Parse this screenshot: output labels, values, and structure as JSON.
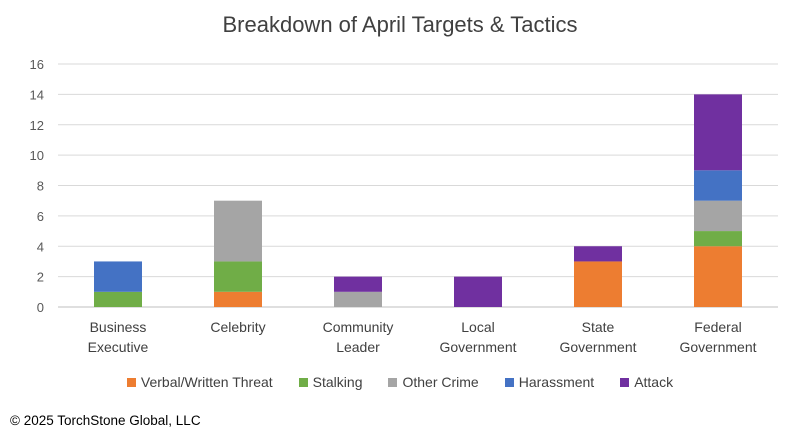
{
  "chart_data": {
    "type": "bar",
    "stacked": true,
    "title": "Breakdown of April Targets & Tactics",
    "categories": [
      [
        "Business",
        "Executive"
      ],
      [
        "Celebrity"
      ],
      [
        "Community",
        "Leader"
      ],
      [
        "Local",
        "Government"
      ],
      [
        "State",
        "Government"
      ],
      [
        "Federal",
        "Government"
      ]
    ],
    "series": [
      {
        "name": "Verbal/Written Threat",
        "color": "#ED7D31",
        "values": [
          0,
          1,
          0,
          0,
          3,
          4
        ]
      },
      {
        "name": "Stalking",
        "color": "#70AD47",
        "values": [
          1,
          2,
          0,
          0,
          0,
          1
        ]
      },
      {
        "name": "Other Crime",
        "color": "#A5A5A5",
        "values": [
          0,
          4,
          1,
          0,
          0,
          2
        ]
      },
      {
        "name": "Harassment",
        "color": "#4472C4",
        "values": [
          2,
          0,
          0,
          0,
          0,
          2
        ]
      },
      {
        "name": "Attack",
        "color": "#7030A0",
        "values": [
          0,
          0,
          1,
          2,
          1,
          5
        ]
      }
    ],
    "ylim": [
      0,
      16
    ],
    "yticks": [
      "0",
      "2",
      "4",
      "6",
      "8",
      "10",
      "12",
      "14",
      "16"
    ],
    "grid": true,
    "legend": "bottom"
  },
  "footer": {
    "copyright": "© 2025 TorchStone Global, LLC"
  }
}
